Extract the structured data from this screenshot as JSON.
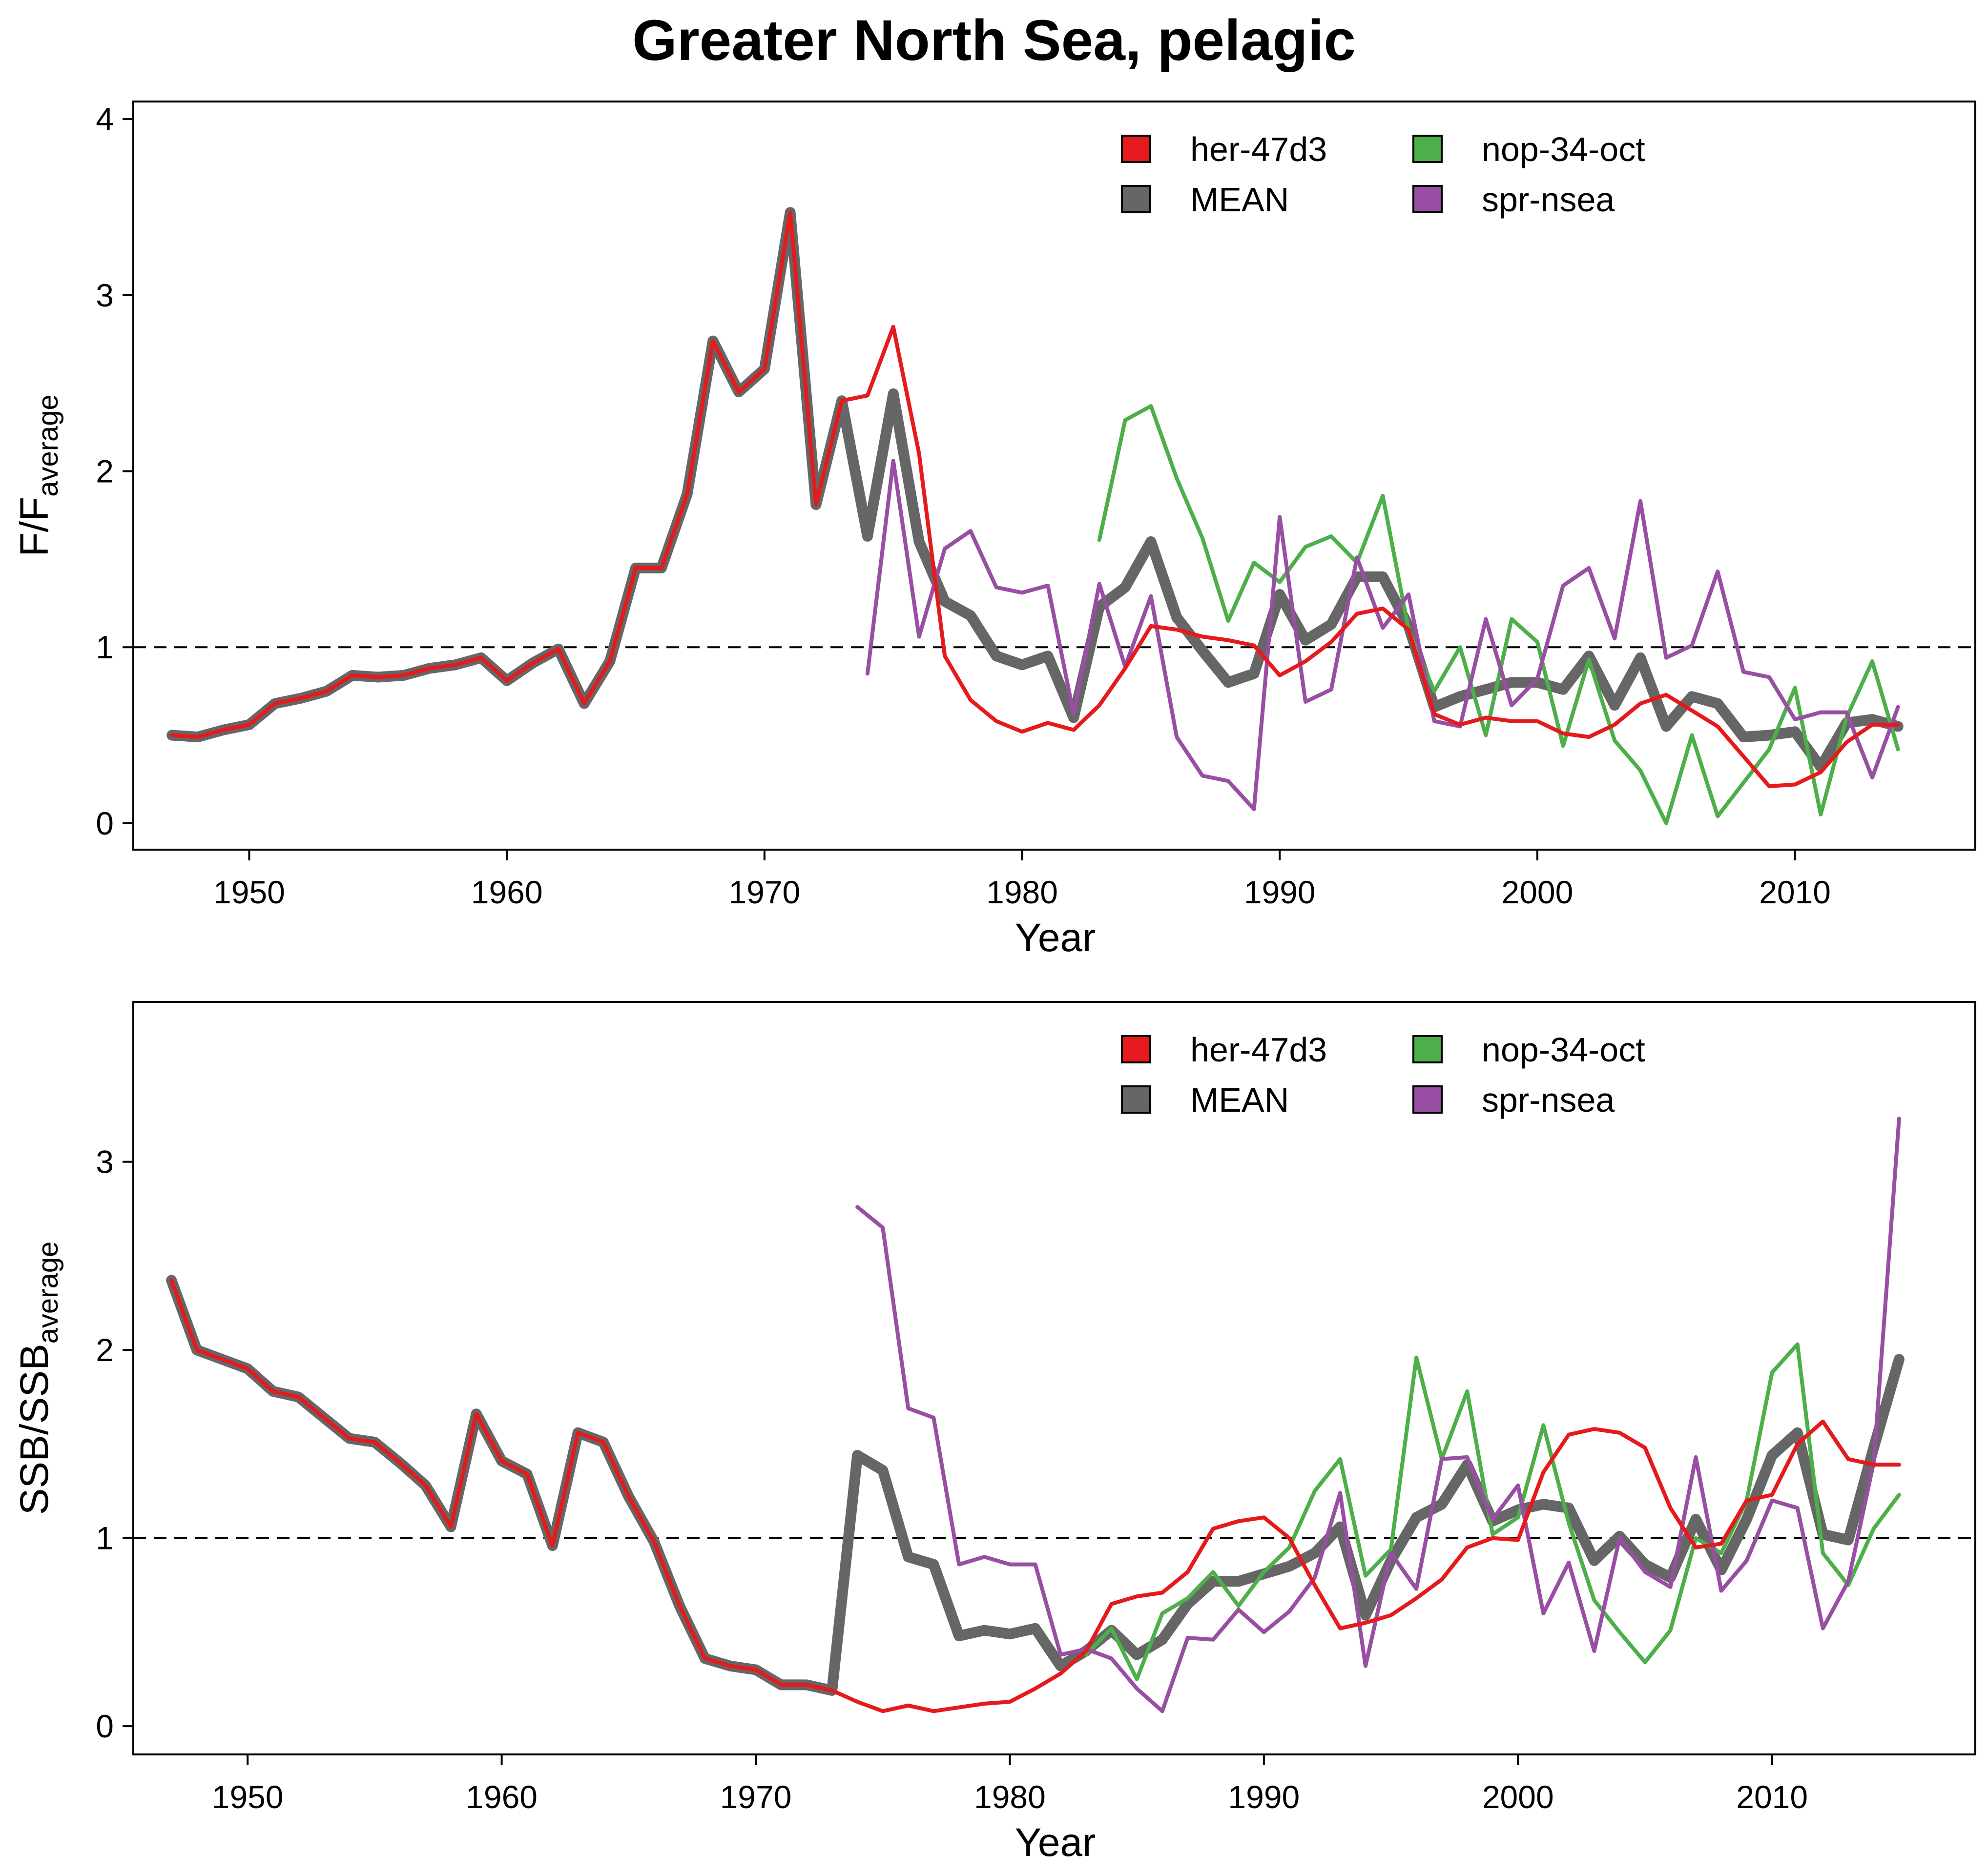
{
  "title": "Greater North Sea, pelagic",
  "chart_data": [
    {
      "type": "line",
      "xlabel": "Year",
      "ylabel_main": "F/F",
      "ylabel_sub": "average",
      "xlim": [
        1945.5,
        2017
      ],
      "ylim": [
        -0.15,
        4.1
      ],
      "xticks": [
        1950,
        1960,
        1970,
        1980,
        1990,
        2000,
        2010
      ],
      "yticks": [
        0,
        1,
        2,
        3,
        4
      ],
      "reference_line": 1,
      "legend": [
        "her-47d3",
        "MEAN",
        "nop-34-oct",
        "spr-nsea"
      ],
      "series": [
        {
          "name": "her-47d3",
          "color": "#e41a1c",
          "width": 8,
          "x": [
            1947,
            1948,
            1949,
            1950,
            1951,
            1952,
            1953,
            1954,
            1955,
            1956,
            1957,
            1958,
            1959,
            1960,
            1961,
            1962,
            1963,
            1964,
            1965,
            1966,
            1967,
            1968,
            1969,
            1970,
            1971,
            1972,
            1973,
            1974,
            1975,
            1976,
            1977,
            1978,
            1979,
            1980,
            1981,
            1982,
            1983,
            1984,
            1985,
            1986,
            1987,
            1988,
            1989,
            1990,
            1991,
            1992,
            1993,
            1994,
            1995,
            1996,
            1997,
            1998,
            1999,
            2000,
            2001,
            2002,
            2003,
            2004,
            2005,
            2006,
            2007,
            2008,
            2009,
            2010,
            2011,
            2012,
            2013,
            2014
          ],
          "y": [
            0.5,
            0.49,
            0.53,
            0.56,
            0.68,
            0.71,
            0.75,
            0.84,
            0.83,
            0.84,
            0.88,
            0.9,
            0.94,
            0.81,
            0.91,
            0.99,
            0.68,
            0.92,
            1.45,
            1.45,
            1.87,
            2.74,
            2.45,
            2.58,
            3.47,
            1.81,
            2.4,
            2.43,
            2.82,
            2.1,
            0.95,
            0.7,
            0.58,
            0.52,
            0.57,
            0.53,
            0.67,
            0.88,
            1.12,
            1.1,
            1.06,
            1.04,
            1.01,
            0.84,
            0.92,
            1.03,
            1.19,
            1.22,
            1.1,
            0.62,
            0.56,
            0.6,
            0.58,
            0.58,
            0.51,
            0.49,
            0.56,
            0.68,
            0.73,
            0.64,
            0.55,
            0.38,
            0.21,
            0.22,
            0.29,
            0.46,
            0.56,
            0.56
          ]
        },
        {
          "name": "MEAN",
          "color": "#666666",
          "width": 22,
          "x": [
            1947,
            1948,
            1949,
            1950,
            1951,
            1952,
            1953,
            1954,
            1955,
            1956,
            1957,
            1958,
            1959,
            1960,
            1961,
            1962,
            1963,
            1964,
            1965,
            1966,
            1967,
            1968,
            1969,
            1970,
            1971,
            1972,
            1973,
            1974,
            1975,
            1976,
            1977,
            1978,
            1979,
            1980,
            1981,
            1982,
            1983,
            1984,
            1985,
            1986,
            1987,
            1988,
            1989,
            1990,
            1991,
            1992,
            1993,
            1994,
            1995,
            1996,
            1997,
            1998,
            1999,
            2000,
            2001,
            2002,
            2003,
            2004,
            2005,
            2006,
            2007,
            2008,
            2009,
            2010,
            2011,
            2012,
            2013,
            2014
          ],
          "y": [
            0.5,
            0.49,
            0.53,
            0.56,
            0.68,
            0.71,
            0.75,
            0.84,
            0.83,
            0.84,
            0.88,
            0.9,
            0.94,
            0.81,
            0.91,
            0.99,
            0.68,
            0.92,
            1.45,
            1.45,
            1.87,
            2.74,
            2.45,
            2.58,
            3.47,
            1.81,
            2.4,
            1.63,
            2.44,
            1.6,
            1.26,
            1.18,
            0.95,
            0.9,
            0.95,
            0.6,
            1.23,
            1.34,
            1.6,
            1.17,
            0.98,
            0.8,
            0.85,
            1.3,
            1.04,
            1.13,
            1.4,
            1.4,
            1.12,
            0.66,
            0.72,
            0.76,
            0.8,
            0.8,
            0.76,
            0.95,
            0.67,
            0.94,
            0.55,
            0.72,
            0.68,
            0.49,
            0.5,
            0.52,
            0.32,
            0.57,
            0.59,
            0.55
          ]
        },
        {
          "name": "nop-34-oct",
          "color": "#4daf4a",
          "width": 8,
          "x": [
            1983,
            1984,
            1985,
            1986,
            1987,
            1988,
            1989,
            1990,
            1991,
            1992,
            1993,
            1994,
            1995,
            1996,
            1997,
            1998,
            1999,
            2000,
            2001,
            2002,
            2003,
            2004,
            2005,
            2006,
            2007,
            2008,
            2009,
            2010,
            2011,
            2012,
            2013,
            2014
          ],
          "y": [
            1.61,
            2.29,
            2.37,
            1.96,
            1.62,
            1.15,
            1.48,
            1.37,
            1.57,
            1.63,
            1.48,
            1.86,
            1.1,
            0.75,
            1.0,
            0.5,
            1.16,
            1.03,
            0.44,
            0.93,
            0.47,
            0.3,
            0.0,
            0.5,
            0.04,
            0.23,
            0.42,
            0.77,
            0.05,
            0.6,
            0.92,
            0.42
          ]
        },
        {
          "name": "spr-nsea",
          "color": "#984ea3",
          "width": 8,
          "x": [
            1974,
            1975,
            1976,
            1977,
            1978,
            1979,
            1980,
            1981,
            1982,
            1983,
            1984,
            1985,
            1986,
            1987,
            1988,
            1989,
            1990,
            1991,
            1992,
            1993,
            1994,
            1995,
            1996,
            1997,
            1998,
            1999,
            2000,
            2001,
            2002,
            2003,
            2004,
            2005,
            2006,
            2007,
            2008,
            2009,
            2010,
            2011,
            2012,
            2013,
            2014
          ],
          "y": [
            0.85,
            2.06,
            1.06,
            1.56,
            1.66,
            1.34,
            1.31,
            1.35,
            0.62,
            1.36,
            0.89,
            1.29,
            0.49,
            0.27,
            0.24,
            0.08,
            1.74,
            0.69,
            0.76,
            1.51,
            1.11,
            1.3,
            0.58,
            0.55,
            1.16,
            0.67,
            0.82,
            1.35,
            1.45,
            1.05,
            1.83,
            0.94,
            1.01,
            1.43,
            0.86,
            0.83,
            0.59,
            0.63,
            0.63,
            0.26,
            0.66
          ]
        }
      ]
    },
    {
      "type": "line",
      "xlabel": "Year",
      "ylabel_main": "SSB/SSB",
      "ylabel_sub": "average",
      "xlim": [
        1945.5,
        2018
      ],
      "ylim": [
        -0.15,
        3.85
      ],
      "xticks": [
        1950,
        1960,
        1970,
        1980,
        1990,
        2000,
        2010
      ],
      "yticks": [
        0,
        1,
        2,
        3
      ],
      "reference_line": 1,
      "legend": [
        "her-47d3",
        "MEAN",
        "nop-34-oct",
        "spr-nsea"
      ],
      "series": [
        {
          "name": "her-47d3",
          "color": "#e41a1c",
          "width": 8,
          "x": [
            1947,
            1948,
            1949,
            1950,
            1951,
            1952,
            1953,
            1954,
            1955,
            1956,
            1957,
            1958,
            1959,
            1960,
            1961,
            1962,
            1963,
            1964,
            1965,
            1966,
            1967,
            1968,
            1969,
            1970,
            1971,
            1972,
            1973,
            1974,
            1975,
            1976,
            1977,
            1978,
            1979,
            1980,
            1981,
            1982,
            1983,
            1984,
            1985,
            1986,
            1987,
            1988,
            1989,
            1990,
            1991,
            1992,
            1993,
            1994,
            1995,
            1996,
            1997,
            1998,
            1999,
            2000,
            2001,
            2002,
            2003,
            2004,
            2005,
            2006,
            2007,
            2008,
            2009,
            2010,
            2011,
            2012,
            2013,
            2014,
            2015
          ],
          "y": [
            2.37,
            2.0,
            1.95,
            1.9,
            1.78,
            1.75,
            1.64,
            1.53,
            1.51,
            1.4,
            1.28,
            1.06,
            1.66,
            1.41,
            1.34,
            0.96,
            1.56,
            1.51,
            1.22,
            0.98,
            0.64,
            0.36,
            0.32,
            0.3,
            0.22,
            0.22,
            0.19,
            0.13,
            0.08,
            0.11,
            0.08,
            0.1,
            0.12,
            0.13,
            0.2,
            0.28,
            0.4,
            0.65,
            0.69,
            0.71,
            0.82,
            1.05,
            1.09,
            1.11,
            1.0,
            0.75,
            0.52,
            0.55,
            0.59,
            0.68,
            0.78,
            0.95,
            1.0,
            0.99,
            1.35,
            1.55,
            1.58,
            1.56,
            1.48,
            1.16,
            0.95,
            0.97,
            1.2,
            1.23,
            1.5,
            1.62,
            1.42,
            1.39,
            1.39
          ]
        },
        {
          "name": "MEAN",
          "color": "#666666",
          "width": 22,
          "x": [
            1947,
            1948,
            1949,
            1950,
            1951,
            1952,
            1953,
            1954,
            1955,
            1956,
            1957,
            1958,
            1959,
            1960,
            1961,
            1962,
            1963,
            1964,
            1965,
            1966,
            1967,
            1968,
            1969,
            1970,
            1971,
            1972,
            1973,
            1974,
            1975,
            1976,
            1977,
            1978,
            1979,
            1980,
            1981,
            1982,
            1983,
            1984,
            1985,
            1986,
            1987,
            1988,
            1989,
            1990,
            1991,
            1992,
            1993,
            1994,
            1995,
            1996,
            1997,
            1998,
            1999,
            2000,
            2001,
            2002,
            2003,
            2004,
            2005,
            2006,
            2007,
            2008,
            2009,
            2010,
            2011,
            2012,
            2013,
            2014,
            2015
          ],
          "y": [
            2.37,
            2.0,
            1.95,
            1.9,
            1.78,
            1.75,
            1.64,
            1.53,
            1.51,
            1.4,
            1.28,
            1.06,
            1.66,
            1.41,
            1.34,
            0.96,
            1.56,
            1.51,
            1.22,
            0.98,
            0.64,
            0.36,
            0.32,
            0.3,
            0.22,
            0.22,
            0.19,
            1.44,
            1.36,
            0.9,
            0.86,
            0.48,
            0.51,
            0.49,
            0.52,
            0.32,
            0.4,
            0.51,
            0.38,
            0.46,
            0.65,
            0.77,
            0.77,
            0.81,
            0.85,
            0.92,
            1.06,
            0.59,
            0.88,
            1.11,
            1.18,
            1.39,
            1.09,
            1.15,
            1.18,
            1.16,
            0.88,
            1.01,
            0.86,
            0.79,
            1.1,
            0.83,
            1.1,
            1.44,
            1.56,
            1.02,
            0.99,
            1.48,
            1.95
          ]
        },
        {
          "name": "nop-34-oct",
          "color": "#4daf4a",
          "width": 8,
          "x": [
            1983,
            1984,
            1985,
            1986,
            1987,
            1988,
            1989,
            1990,
            1991,
            1992,
            1993,
            1994,
            1995,
            1996,
            1997,
            1998,
            1999,
            2000,
            2001,
            2002,
            2003,
            2004,
            2005,
            2006,
            2007,
            2008,
            2009,
            2010,
            2011,
            2012,
            2013,
            2014,
            2015
          ],
          "y": [
            0.38,
            0.52,
            0.25,
            0.6,
            0.68,
            0.82,
            0.64,
            0.82,
            0.95,
            1.25,
            1.42,
            0.8,
            0.94,
            1.96,
            1.42,
            1.78,
            1.02,
            1.11,
            1.6,
            1.08,
            0.67,
            0.5,
            0.34,
            0.51,
            1.0,
            0.92,
            1.2,
            1.88,
            2.03,
            0.92,
            0.75,
            1.05,
            1.23
          ]
        },
        {
          "name": "spr-nsea",
          "color": "#984ea3",
          "width": 8,
          "x": [
            1974,
            1975,
            1976,
            1977,
            1978,
            1979,
            1980,
            1981,
            1982,
            1983,
            1984,
            1985,
            1986,
            1987,
            1988,
            1989,
            1990,
            1991,
            1992,
            1993,
            1994,
            1995,
            1996,
            1997,
            1998,
            1999,
            2000,
            2001,
            2002,
            2003,
            2004,
            2005,
            2006,
            2007,
            2008,
            2009,
            2010,
            2011,
            2012,
            2013,
            2014,
            2015
          ],
          "y": [
            2.76,
            2.65,
            1.69,
            1.64,
            0.86,
            0.9,
            0.86,
            0.86,
            0.38,
            0.41,
            0.36,
            0.2,
            0.08,
            0.47,
            0.46,
            0.62,
            0.5,
            0.61,
            0.79,
            1.24,
            0.32,
            0.92,
            0.73,
            1.42,
            1.43,
            1.1,
            1.28,
            0.6,
            0.87,
            0.4,
            1.0,
            0.82,
            0.74,
            1.43,
            0.72,
            0.88,
            1.2,
            1.16,
            0.52,
            0.77,
            1.4,
            3.23
          ]
        }
      ]
    }
  ]
}
